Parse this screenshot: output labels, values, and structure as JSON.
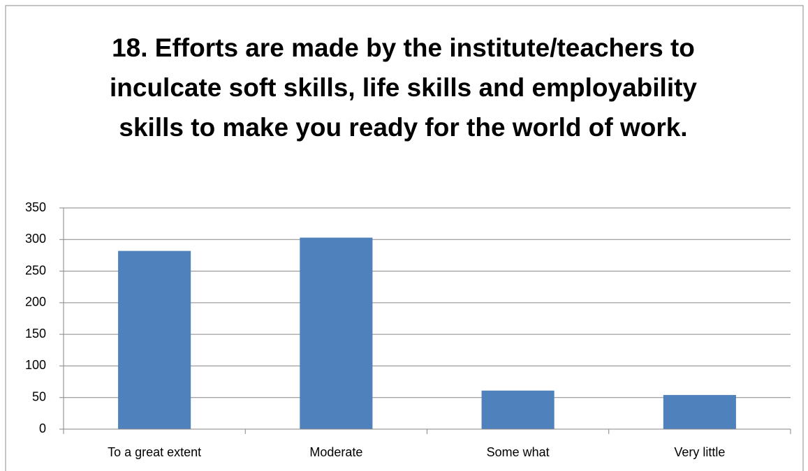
{
  "chart_data": {
    "type": "bar",
    "title": "18. Efforts are made by the institute/teachers to inculcate soft skills, life skills and employability skills to make you ready for the world of work.",
    "categories": [
      "To a great extent",
      "Moderate",
      "Some what",
      "Very little"
    ],
    "values": [
      282,
      303,
      61,
      54
    ],
    "color": "#4f81bd",
    "ylim": [
      0,
      350
    ],
    "yticks": [
      0,
      50,
      100,
      150,
      200,
      250,
      300,
      350
    ],
    "grid": true
  }
}
